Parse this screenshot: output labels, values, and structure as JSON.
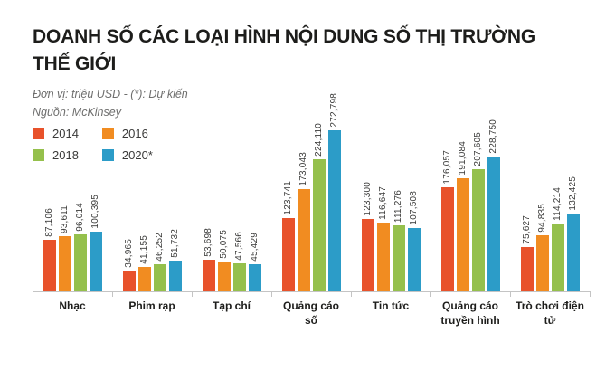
{
  "header": {
    "title": "DOANH SỐ CÁC LOẠI HÌNH NỘI DUNG SỐ THỊ TRƯỜNG\nTHẾ GIỚI",
    "unit_note": "Đơn vị: triệu USD - (*): Dự kiến",
    "source_note": "Nguồn: McKinsey"
  },
  "chart_data": {
    "type": "bar",
    "title": "DOANH SỐ CÁC LOẠI HÌNH NỘI DUNG SỐ THỊ TRƯỜNG THẾ GIỚI",
    "unit": "triệu USD",
    "source": "McKinsey",
    "note": "(*): Dự kiến",
    "legend_position": "top-left",
    "grid": false,
    "value_labels_rotated": true,
    "categories": [
      "Nhạc",
      "Phim rạp",
      "Tạp chí",
      "Quảng cáo số",
      "Tin tức",
      "Quảng cáo truyền hình",
      "Trò chơi điện tử"
    ],
    "series": [
      {
        "name": "2014",
        "color": "#e8522b",
        "values": [
          87106,
          34965,
          53698,
          123741,
          123300,
          176057,
          75627
        ]
      },
      {
        "name": "2016",
        "color": "#f18c21",
        "values": [
          93611,
          41155,
          50075,
          173043,
          116647,
          191084,
          94835
        ]
      },
      {
        "name": "2018",
        "color": "#95c04c",
        "values": [
          96014,
          46252,
          47566,
          224110,
          111276,
          207605,
          114214
        ]
      },
      {
        "name": "2020*",
        "color": "#2c9cc8",
        "values": [
          100395,
          51732,
          45429,
          272798,
          107508,
          228750,
          132425
        ]
      }
    ]
  }
}
